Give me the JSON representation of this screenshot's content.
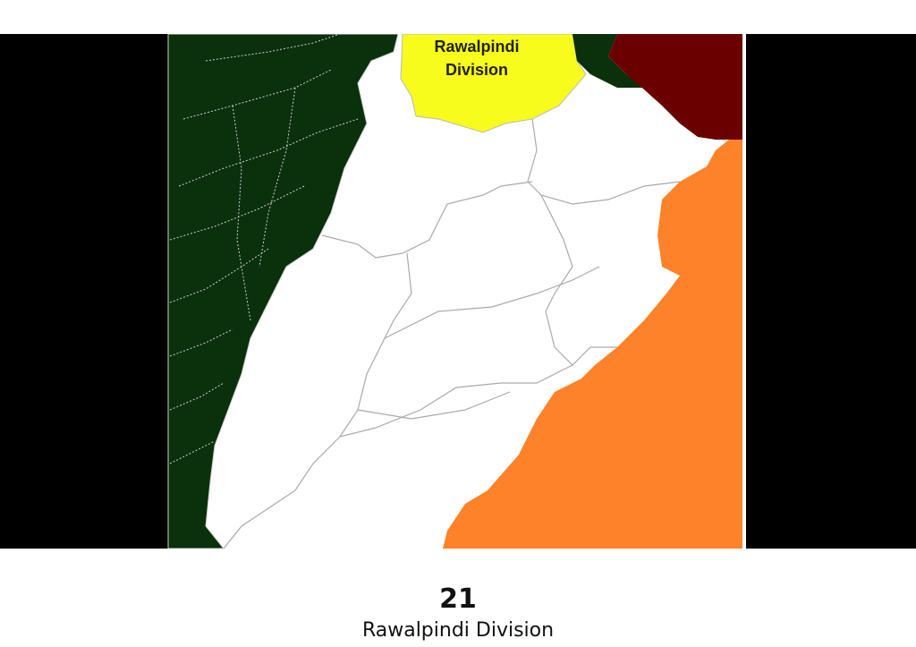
{
  "map": {
    "highlighted_region_label_line1": "Rawalpindi",
    "highlighted_region_label_line2": "Division",
    "colors": {
      "background": "#000000",
      "west_provinces": "#0a300c",
      "highlighted_region": "#f8fc1c",
      "north_east_region": "#6b0000",
      "east_region": "#fd8229",
      "main_region": "#ffffff",
      "borders": "#aaaaaa"
    }
  },
  "caption": {
    "number": "21",
    "title": "Rawalpindi Division"
  }
}
